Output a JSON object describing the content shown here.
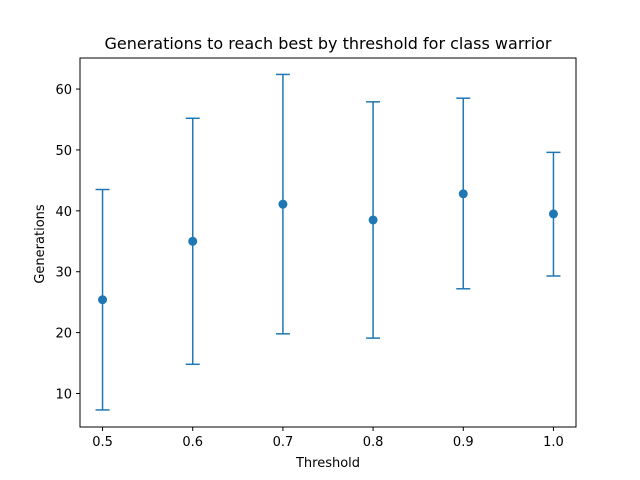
{
  "chart_data": {
    "type": "scatter",
    "title": "Generations to reach best by threshold for class warrior",
    "xlabel": "Threshold",
    "ylabel": "Generations",
    "xlim": [
      0.475,
      1.025
    ],
    "ylim": [
      4.5,
      65.1
    ],
    "x_ticks": [
      0.5,
      0.6,
      0.7,
      0.8,
      0.9,
      1.0
    ],
    "x_tick_labels": [
      "0.5",
      "0.6",
      "0.7",
      "0.8",
      "0.9",
      "1.0"
    ],
    "y_ticks": [
      10,
      20,
      30,
      40,
      50,
      60
    ],
    "y_tick_labels": [
      "10",
      "20",
      "30",
      "40",
      "50",
      "60"
    ],
    "grid": false,
    "error_bars": true,
    "color": "#1f77b4",
    "series": [
      {
        "x": [
          0.5,
          0.6,
          0.7,
          0.8,
          0.9,
          1.0
        ],
        "y": [
          25.4,
          35.0,
          41.1,
          38.5,
          42.8,
          39.5
        ],
        "yerr_lower": [
          7.3,
          14.8,
          19.8,
          19.1,
          27.2,
          29.3
        ],
        "yerr_upper": [
          43.5,
          55.2,
          62.4,
          57.9,
          58.5,
          49.6
        ]
      }
    ]
  }
}
